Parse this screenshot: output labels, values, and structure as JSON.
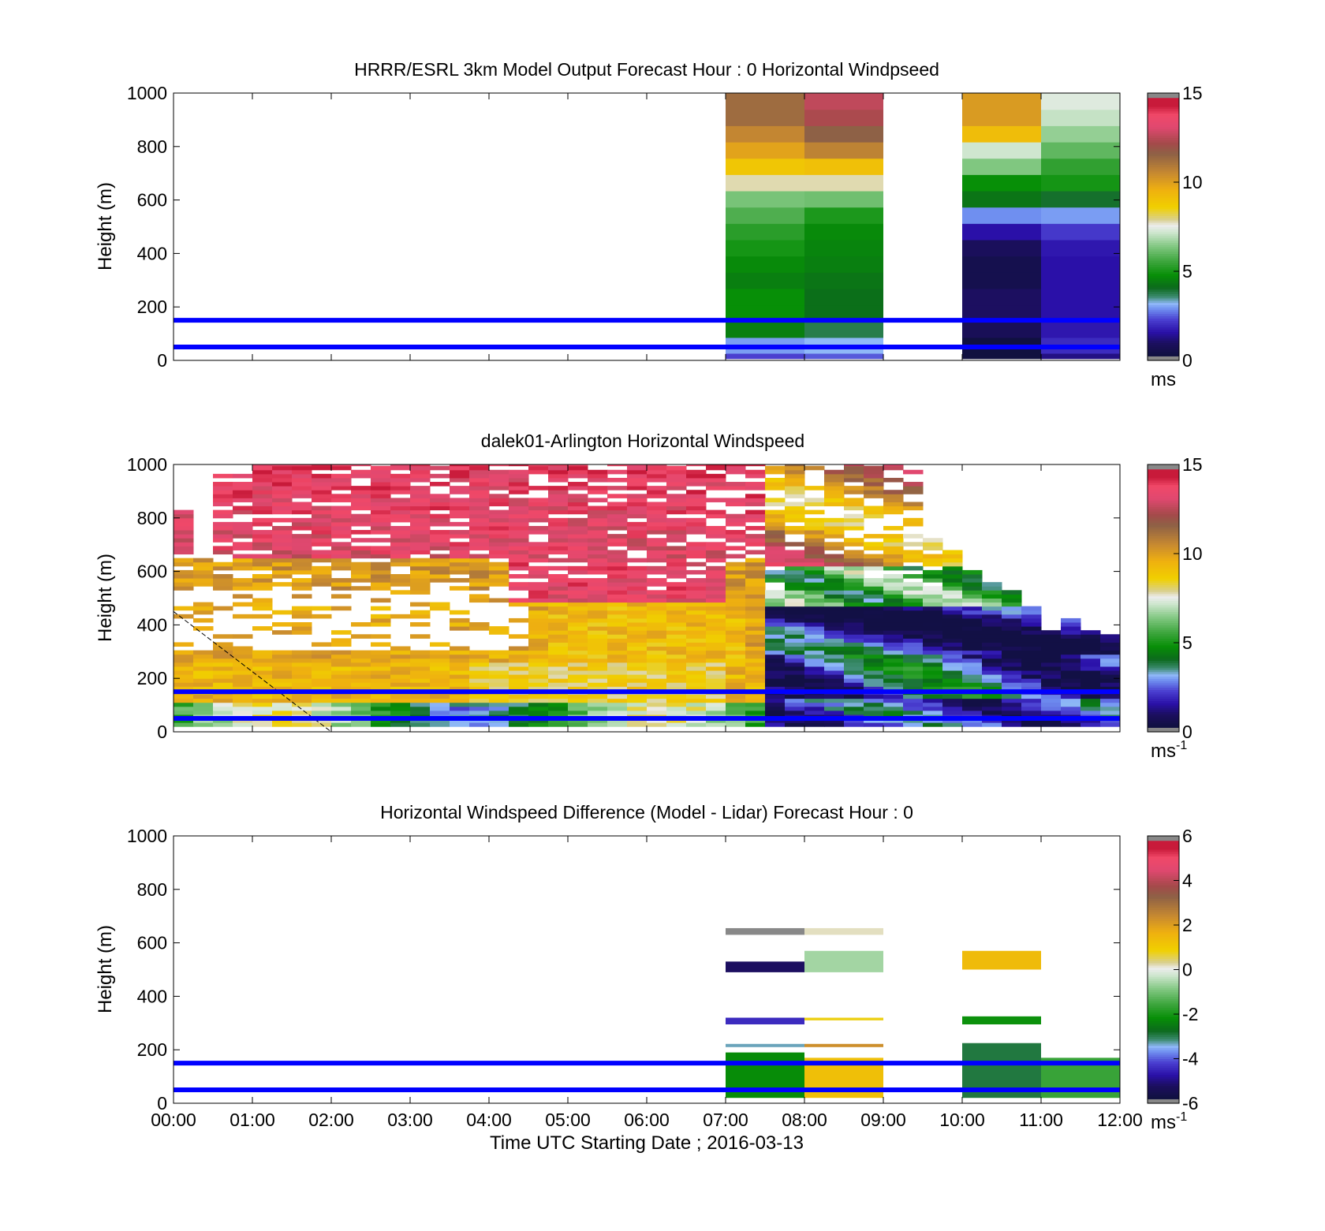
{
  "figure": {
    "x_tick_labels": [
      "00:00",
      "01:00",
      "02:00",
      "03:00",
      "04:00",
      "05:00",
      "06:00",
      "07:00",
      "08:00",
      "09:00",
      "10:00",
      "11:00",
      "12:00"
    ],
    "x_axis_label": "Time UTC  Starting Date ; 2016-03-13",
    "y_axis_label": "Height (m)",
    "y_tick_labels": [
      "0",
      "200",
      "400",
      "600",
      "800",
      "1000"
    ],
    "reference_line_color": "#0000ff"
  },
  "chart_data": [
    {
      "type": "heatmap",
      "title": "HRRR/ESRL 3km Model Output   Forecast Hour : 0 Horizontal Windpseed",
      "ylabel": "Height (m)",
      "xlabel": "",
      "xlim_hours": [
        0,
        12
      ],
      "ylim": [
        0,
        1000
      ],
      "colorbar": {
        "range": [
          0,
          15
        ],
        "ticks": [
          "0",
          "5",
          "10",
          "15"
        ],
        "unit": "ms",
        "unit_superscript": ""
      },
      "reference_lines_m": [
        50,
        150
      ],
      "columns": [
        {
          "t0": 7,
          "t1": 8,
          "z": [
            3,
            4.5,
            4.8,
            4.8,
            4.5,
            4.7,
            5,
            5.3,
            5.8,
            6.3,
            7.8,
            8.9,
            9.9,
            10.6,
            11.3,
            11.3
          ]
        },
        {
          "t0": 8,
          "t1": 9,
          "z": [
            3.2,
            3.8,
            4.2,
            4.2,
            4.3,
            4.5,
            4.6,
            4.7,
            5.1,
            6.2,
            7.8,
            9.1,
            10.7,
            11.6,
            12.3,
            12.6
          ]
        },
        {
          "t0": 10,
          "t1": 11,
          "z": [
            0.3,
            0.8,
            1,
            1,
            0.6,
            0.6,
            0.9,
            1.6,
            2.9,
            4.3,
            4.8,
            6.4,
            7.2,
            9.2,
            10.1,
            10.1
          ]
        },
        {
          "t0": 11,
          "t1": 12,
          "z": [
            2,
            1.7,
            1.6,
            1.6,
            1.6,
            1.6,
            1.7,
            2.2,
            3,
            4,
            5,
            5.4,
            6,
            6.6,
            7.1,
            7.4
          ]
        }
      ]
    },
    {
      "type": "heatmap",
      "title": "dalek01-Arlington  Horizontal Windspeed",
      "ylabel": "Height (m)",
      "xlabel": "",
      "xlim_hours": [
        0,
        12
      ],
      "ylim": [
        0,
        1000
      ],
      "colorbar": {
        "range": [
          0,
          15
        ],
        "ticks": [
          "0",
          "5",
          "10",
          "15"
        ],
        "unit": "ms",
        "unit_superscript": "-1"
      },
      "reference_lines_m": [
        50,
        150
      ],
      "profile_hours": [
        0,
        0.25,
        0.5,
        0.75,
        1,
        1.25,
        1.5,
        1.75,
        2,
        2.25,
        2.5,
        2.75,
        3,
        3.25,
        3.5,
        3.75,
        4,
        4.25,
        4.5,
        4.75,
        5,
        5.25,
        5.5,
        5.75,
        6,
        6.25,
        6.5,
        6.75,
        7,
        7.25,
        7.5,
        7.75,
        8,
        8.25,
        8.5,
        8.75,
        9,
        9.25,
        9.5,
        9.75,
        10,
        10.25,
        10.5,
        10.75,
        11,
        11.25,
        11.5,
        11.75
      ],
      "profile_max_height_m": [
        820,
        660,
        960,
        960,
        1000,
        1000,
        1000,
        1000,
        1000,
        1000,
        1000,
        1000,
        1000,
        1000,
        1000,
        1000,
        1000,
        1000,
        1000,
        1000,
        1000,
        1000,
        1000,
        1000,
        1000,
        1000,
        1000,
        1000,
        1000,
        1000,
        1000,
        1000,
        1000,
        1000,
        1000,
        1000,
        1000,
        980,
        720,
        680,
        600,
        560,
        540,
        460,
        380,
        420,
        380,
        360
      ],
      "note_annotation_line_hours_m": [
        [
          0,
          450
        ],
        [
          2,
          0
        ]
      ]
    },
    {
      "type": "heatmap",
      "title": "Horizontal Windspeed Difference (Model - Lidar) Forecast Hour : 0",
      "ylabel": "Height (m)",
      "xlabel": "Time UTC  Starting Date ; 2016-03-13",
      "xlim_hours": [
        0,
        12
      ],
      "ylim": [
        0,
        1000
      ],
      "colorbar": {
        "range": [
          -6,
          6
        ],
        "ticks": [
          "-6",
          "-4",
          "-2",
          "0",
          "2",
          "4",
          "6"
        ],
        "unit": "ms",
        "unit_superscript": "-1"
      },
      "reference_lines_m": [
        50,
        150
      ],
      "cells": [
        {
          "t0": 7,
          "t1": 8,
          "y0": 20,
          "y1": 190,
          "v": -2.2
        },
        {
          "t0": 7,
          "t1": 8,
          "y0": 210,
          "y1": 222,
          "v": -3.3
        },
        {
          "t0": 7,
          "t1": 8,
          "y0": 295,
          "y1": 320,
          "v": -4.4
        },
        {
          "t0": 7,
          "t1": 8,
          "y0": 490,
          "y1": 530,
          "v": -5.2
        },
        {
          "t0": 7,
          "t1": 8,
          "y0": 630,
          "y1": 655,
          "v": -5.8
        },
        {
          "t0": 8,
          "t1": 9,
          "y0": 20,
          "y1": 170,
          "v": 1.3
        },
        {
          "t0": 8,
          "t1": 9,
          "y0": 210,
          "y1": 222,
          "v": 2.3
        },
        {
          "t0": 8,
          "t1": 9,
          "y0": 310,
          "y1": 320,
          "v": 0.8
        },
        {
          "t0": 8,
          "t1": 9,
          "y0": 490,
          "y1": 570,
          "v": -0.6
        },
        {
          "t0": 8,
          "t1": 9,
          "y0": 630,
          "y1": 655,
          "v": 0.2
        },
        {
          "t0": 10,
          "t1": 11,
          "y0": 20,
          "y1": 225,
          "v": -2.9
        },
        {
          "t0": 10,
          "t1": 11,
          "y0": 295,
          "y1": 325,
          "v": -2.1
        },
        {
          "t0": 10,
          "t1": 11,
          "y0": 500,
          "y1": 570,
          "v": 1.4
        },
        {
          "t0": 11,
          "t1": 12,
          "y0": 20,
          "y1": 170,
          "v": -1.6
        }
      ]
    }
  ]
}
